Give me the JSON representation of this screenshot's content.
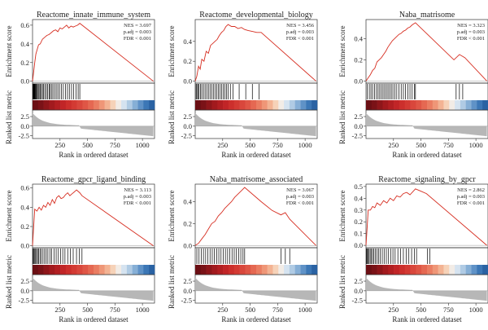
{
  "chart_data": [
    {
      "type": "line",
      "title": "Reactome_innate_immune_system",
      "stats": [
        "NES = 3.697",
        "p.adj = 0.003",
        "FDR < 0.001"
      ],
      "ylabel_top": "Enrichment score",
      "ylabel_bottom": "Ranked list metric",
      "xlabel": "Rank in ordered dataset",
      "xlim": [
        0,
        1110
      ],
      "xticks": [
        250,
        500,
        750,
        1000
      ],
      "ylim": [
        -0.02,
        0.66
      ],
      "yticks": [
        0.0,
        0.2,
        0.4,
        0.6
      ],
      "metric_ylim": [
        -3.2,
        4.2
      ],
      "metric_yticks": [
        2.5,
        0.0,
        -2.5
      ],
      "peak": [
        430,
        0.62
      ],
      "x": [
        0,
        10,
        20,
        30,
        40,
        55,
        70,
        90,
        110,
        130,
        150,
        170,
        190,
        210,
        230,
        250,
        270,
        290,
        310,
        330,
        350,
        370,
        390,
        410,
        430,
        1100
      ],
      "y": [
        0,
        0.1,
        0.2,
        0.29,
        0.33,
        0.39,
        0.4,
        0.45,
        0.47,
        0.49,
        0.5,
        0.52,
        0.54,
        0.55,
        0.53,
        0.57,
        0.56,
        0.58,
        0.6,
        0.57,
        0.59,
        0.58,
        0.59,
        0.6,
        0.62,
        0.0
      ],
      "hits": [
        3,
        6,
        9,
        12,
        16,
        20,
        25,
        30,
        36,
        44,
        52,
        60,
        70,
        80,
        90,
        100,
        112,
        125,
        138,
        150,
        160,
        172,
        185,
        200,
        215,
        230,
        245,
        262,
        280,
        300,
        318,
        335,
        355,
        375,
        395,
        415,
        430
      ]
    },
    {
      "type": "line",
      "title": "Reactome_developmental_biology",
      "stats": [
        "NES = 3.456",
        "p.adj = 0.003",
        "FDR < 0.001"
      ],
      "ylabel_top": "Enrichment score",
      "ylabel_bottom": "Ranked list metric",
      "xlabel": "Rank in ordered dataset",
      "xlim": [
        0,
        1110
      ],
      "xticks": [
        250,
        500,
        750,
        1000
      ],
      "ylim": [
        -0.02,
        0.62
      ],
      "yticks": [
        0.0,
        0.2,
        0.4
      ],
      "metric_ylim": [
        -3.2,
        4.2
      ],
      "metric_yticks": [
        2.5,
        0.0,
        -2.5
      ],
      "peak": [
        300,
        0.57
      ],
      "x": [
        0,
        15,
        30,
        45,
        60,
        80,
        100,
        120,
        140,
        160,
        180,
        200,
        220,
        240,
        260,
        280,
        300,
        330,
        360,
        390,
        420,
        450,
        480,
        520,
        560,
        600,
        1100
      ],
      "y": [
        0,
        0.05,
        0.15,
        0.12,
        0.22,
        0.2,
        0.3,
        0.28,
        0.36,
        0.38,
        0.4,
        0.42,
        0.46,
        0.49,
        0.51,
        0.55,
        0.57,
        0.55,
        0.55,
        0.53,
        0.54,
        0.52,
        0.51,
        0.5,
        0.49,
        0.49,
        0.0
      ],
      "hits": [
        8,
        15,
        25,
        35,
        48,
        60,
        75,
        90,
        105,
        120,
        135,
        150,
        165,
        180,
        195,
        210,
        225,
        240,
        255,
        270,
        285,
        300,
        320,
        345,
        400,
        460,
        520,
        580
      ]
    },
    {
      "type": "line",
      "title": "Naba_matrisome",
      "stats": [
        "NES = 3.323",
        "p.adj = 0.003",
        "FDR < 0.001"
      ],
      "ylabel_top": "Enrichment score",
      "ylabel_bottom": "Ranked list metric",
      "xlabel": "Rank in ordered dataset",
      "xlim": [
        0,
        1110
      ],
      "xticks": [
        250,
        500,
        750,
        1000
      ],
      "ylim": [
        -0.02,
        0.58
      ],
      "yticks": [
        0.0,
        0.2,
        0.4
      ],
      "metric_ylim": [
        -3.2,
        4.2
      ],
      "metric_yticks": [
        2.5,
        0.0,
        -2.5
      ],
      "peak": [
        450,
        0.55
      ],
      "x": [
        0,
        20,
        40,
        60,
        80,
        100,
        120,
        140,
        160,
        180,
        200,
        220,
        240,
        260,
        280,
        300,
        320,
        340,
        360,
        380,
        400,
        420,
        450,
        600,
        700,
        800,
        850,
        900,
        1100
      ],
      "y": [
        0,
        0.03,
        0.06,
        0.1,
        0.12,
        0.18,
        0.2,
        0.22,
        0.25,
        0.28,
        0.32,
        0.35,
        0.38,
        0.4,
        0.42,
        0.44,
        0.45,
        0.47,
        0.48,
        0.5,
        0.51,
        0.53,
        0.55,
        0.4,
        0.3,
        0.2,
        0.25,
        0.22,
        0.0
      ],
      "hits": [
        10,
        30,
        45,
        60,
        78,
        95,
        110,
        125,
        140,
        155,
        170,
        185,
        200,
        215,
        230,
        245,
        262,
        280,
        300,
        320,
        340,
        360,
        380,
        400,
        420,
        440,
        450,
        820,
        850,
        880
      ]
    },
    {
      "type": "line",
      "title": "Reactome_gpcr_ligand_binding",
      "stats": [
        "NES = 3.113",
        "p.adj = 0.003",
        "FDR < 0.001"
      ],
      "ylabel_top": "Enrichment score",
      "ylabel_bottom": "Ranked list metric",
      "xlabel": "Rank in ordered dataset",
      "xlim": [
        0,
        1110
      ],
      "xticks": [
        250,
        500,
        750,
        1000
      ],
      "ylim": [
        -0.02,
        0.64
      ],
      "yticks": [
        0.0,
        0.2,
        0.4,
        0.6
      ],
      "metric_ylim": [
        -3.2,
        4.2
      ],
      "metric_yticks": [
        2.5,
        0.0,
        -2.5
      ],
      "peak": [
        400,
        0.58
      ],
      "x": [
        0,
        10,
        20,
        40,
        60,
        80,
        100,
        120,
        140,
        160,
        180,
        200,
        220,
        240,
        260,
        280,
        300,
        320,
        340,
        360,
        380,
        400,
        430,
        450,
        1100
      ],
      "y": [
        0,
        0.2,
        0.38,
        0.36,
        0.4,
        0.37,
        0.42,
        0.4,
        0.45,
        0.42,
        0.48,
        0.44,
        0.5,
        0.52,
        0.49,
        0.5,
        0.53,
        0.55,
        0.52,
        0.54,
        0.56,
        0.58,
        0.55,
        0.52,
        0.0
      ],
      "hits": [
        5,
        12,
        20,
        28,
        36,
        46,
        56,
        68,
        80,
        95,
        110,
        125,
        140,
        158,
        175,
        195,
        215,
        235,
        255,
        275,
        295,
        320,
        345,
        370,
        400,
        425,
        450
      ]
    },
    {
      "type": "line",
      "title": "Naba_matrisome_associated",
      "stats": [
        "NES = 3.067",
        "p.adj = 0.003",
        "FDR < 0.001"
      ],
      "ylabel_top": "Enrichment score",
      "ylabel_bottom": "Ranked list metric",
      "xlabel": "Rank in ordered dataset",
      "xlim": [
        0,
        1110
      ],
      "xticks": [
        250,
        500,
        750,
        1000
      ],
      "ylim": [
        -0.02,
        0.56
      ],
      "yticks": [
        0.0,
        0.2,
        0.4
      ],
      "metric_ylim": [
        -3.2,
        4.2
      ],
      "metric_yticks": [
        2.5,
        0.0,
        -2.5
      ],
      "peak": [
        450,
        0.53
      ],
      "x": [
        0,
        30,
        60,
        90,
        120,
        150,
        180,
        210,
        240,
        270,
        300,
        330,
        360,
        390,
        420,
        450,
        600,
        700,
        780,
        820,
        860,
        1100
      ],
      "y": [
        0,
        0.02,
        0.06,
        0.1,
        0.15,
        0.2,
        0.22,
        0.27,
        0.3,
        0.34,
        0.37,
        0.4,
        0.44,
        0.47,
        0.5,
        0.53,
        0.4,
        0.32,
        0.28,
        0.3,
        0.24,
        0.0
      ],
      "hits": [
        15,
        35,
        55,
        75,
        95,
        115,
        135,
        155,
        175,
        195,
        215,
        235,
        255,
        275,
        295,
        315,
        335,
        355,
        375,
        395,
        415,
        435,
        450,
        780,
        820,
        860
      ]
    },
    {
      "type": "line",
      "title": "Reactome_signaling_by_gpcr",
      "stats": [
        "NES = 2.862",
        "p.adj = 0.003",
        "FDR < 0.001"
      ],
      "ylabel_top": "Enrichment score",
      "ylabel_bottom": "Ranked list metric",
      "xlabel": "Rank in ordered dataset",
      "xlim": [
        0,
        1110
      ],
      "xticks": [
        250,
        500,
        750,
        1000
      ],
      "ylim": [
        -0.02,
        0.52
      ],
      "yticks": [
        0.0,
        0.1,
        0.2,
        0.3,
        0.4,
        0.5
      ],
      "metric_ylim": [
        -3.2,
        4.2
      ],
      "metric_yticks": [
        2.5,
        0.0,
        -2.5
      ],
      "peak": [
        450,
        0.48
      ],
      "x": [
        0,
        10,
        20,
        40,
        60,
        80,
        100,
        130,
        160,
        190,
        220,
        250,
        280,
        310,
        340,
        370,
        400,
        430,
        450,
        500,
        550,
        1100
      ],
      "y": [
        0,
        0.15,
        0.3,
        0.3,
        0.33,
        0.32,
        0.36,
        0.34,
        0.38,
        0.36,
        0.4,
        0.38,
        0.42,
        0.41,
        0.44,
        0.45,
        0.43,
        0.46,
        0.48,
        0.46,
        0.44,
        0.0
      ],
      "hits": [
        5,
        12,
        20,
        28,
        38,
        48,
        60,
        72,
        86,
        100,
        115,
        130,
        148,
        165,
        185,
        205,
        225,
        245,
        265,
        290,
        315,
        340,
        365,
        390,
        415,
        440,
        460,
        560,
        580
      ]
    }
  ]
}
